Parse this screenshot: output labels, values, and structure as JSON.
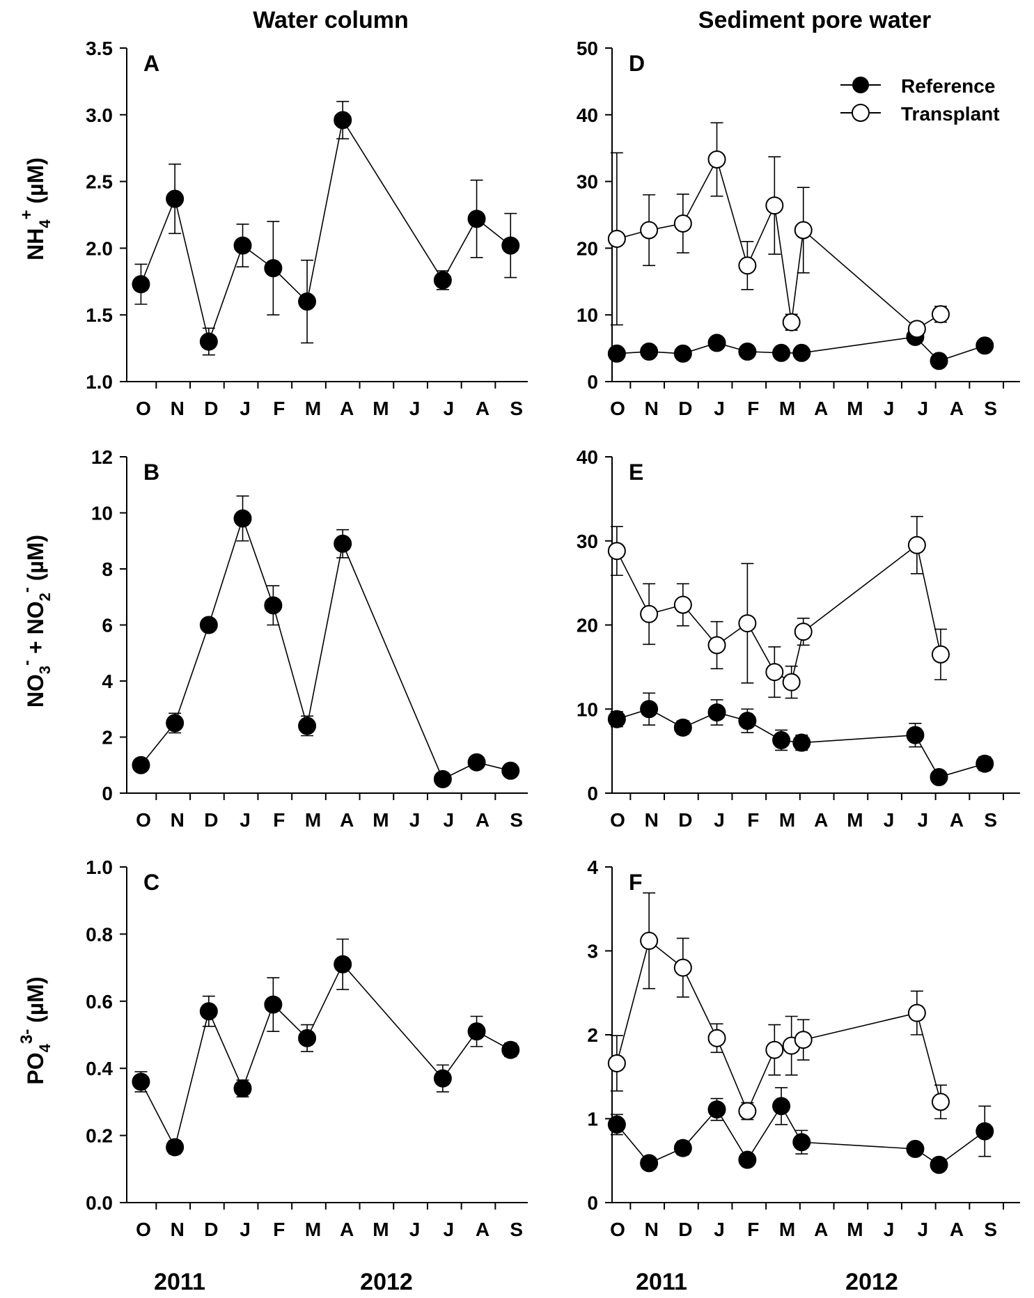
{
  "column_titles": {
    "left": "Water column",
    "right": "Sediment pore water"
  },
  "years": {
    "left": [
      "2011",
      "2012"
    ],
    "right": [
      "2011",
      "2012"
    ]
  },
  "legend": {
    "reference": "Reference",
    "transplant": "Transplant",
    "placement": "top-right of panel D"
  },
  "chart_data": [
    {
      "panel": "A",
      "type": "line",
      "ylabel": "NH4+ (µM)",
      "ylim": [
        1.0,
        3.5
      ],
      "yticks": [
        "1.0",
        "1.5",
        "2.0",
        "2.5",
        "3.0",
        "3.5"
      ],
      "months": [
        "O",
        "N",
        "D",
        "J",
        "F",
        "M",
        "A",
        "M",
        "J",
        "J",
        "A",
        "S"
      ],
      "series": [
        {
          "name": "Reference",
          "marker": "filled",
          "x": [
            0.05,
            1.05,
            2.05,
            3.05,
            3.95,
            4.95,
            6.0,
            8.95,
            9.95,
            10.95
          ],
          "y": [
            1.73,
            2.37,
            1.3,
            2.02,
            1.85,
            1.6,
            2.96,
            1.76,
            2.22,
            2.02
          ],
          "err": [
            0.15,
            0.26,
            0.1,
            0.16,
            0.35,
            0.31,
            0.14,
            0.07,
            0.29,
            0.24
          ]
        }
      ]
    },
    {
      "panel": "D",
      "type": "line",
      "ylabel": "",
      "ylim": [
        0,
        50
      ],
      "yticks": [
        "0",
        "10",
        "20",
        "30",
        "40",
        "50"
      ],
      "months": [
        "O",
        "N",
        "D",
        "J",
        "F",
        "M",
        "A",
        "M",
        "J",
        "J",
        "A",
        "S"
      ],
      "series": [
        {
          "name": "Reference",
          "marker": "filled",
          "x": [
            0.1,
            1.05,
            2.05,
            3.05,
            3.95,
            4.95,
            5.55,
            8.9,
            9.6,
            10.95
          ],
          "y": [
            4.2,
            4.5,
            4.2,
            5.8,
            4.5,
            4.3,
            4.3,
            6.7,
            3.1,
            5.4
          ],
          "err": [
            0.8,
            0.6,
            0.6,
            0.8,
            0.6,
            0.6,
            0.6,
            0.9,
            0.6,
            0.8
          ]
        },
        {
          "name": "Transplant",
          "marker": "open",
          "x": [
            0.1,
            1.05,
            2.05,
            3.05,
            3.95,
            4.75,
            5.25,
            5.6,
            8.95,
            9.65
          ],
          "y": [
            21.4,
            22.7,
            23.7,
            33.3,
            17.4,
            26.4,
            8.9,
            22.7,
            7.9,
            10.1
          ],
          "err": [
            12.9,
            5.3,
            4.4,
            5.5,
            3.6,
            7.3,
            1.2,
            6.4,
            1.0,
            1.2
          ]
        }
      ]
    },
    {
      "panel": "B",
      "type": "line",
      "ylabel": "NO3- + NO2- (µM)",
      "ylim": [
        0,
        12
      ],
      "yticks": [
        "0",
        "2",
        "4",
        "6",
        "8",
        "10",
        "12"
      ],
      "months": [
        "O",
        "N",
        "D",
        "J",
        "F",
        "M",
        "A",
        "M",
        "J",
        "J",
        "A",
        "S"
      ],
      "series": [
        {
          "name": "Reference",
          "marker": "filled",
          "x": [
            0.05,
            1.05,
            2.05,
            3.05,
            3.95,
            4.95,
            6.0,
            8.95,
            9.95,
            10.95
          ],
          "y": [
            1.0,
            2.5,
            6.0,
            9.8,
            6.7,
            2.4,
            8.9,
            0.5,
            1.1,
            0.8
          ],
          "err": [
            0.15,
            0.35,
            0.15,
            0.8,
            0.7,
            0.35,
            0.5,
            0.1,
            0.2,
            0.15
          ]
        }
      ]
    },
    {
      "panel": "E",
      "type": "line",
      "ylabel": "",
      "ylim": [
        0,
        40
      ],
      "yticks": [
        "0",
        "10",
        "20",
        "30",
        "40"
      ],
      "months": [
        "O",
        "N",
        "D",
        "J",
        "F",
        "M",
        "A",
        "M",
        "J",
        "J",
        "A",
        "S"
      ],
      "series": [
        {
          "name": "Reference",
          "marker": "filled",
          "x": [
            0.1,
            1.05,
            2.05,
            3.05,
            3.95,
            4.95,
            5.55,
            8.9,
            9.6,
            10.95
          ],
          "y": [
            8.8,
            10.0,
            7.8,
            9.6,
            8.6,
            6.3,
            6.0,
            6.9,
            1.9,
            3.5
          ],
          "err": [
            0.9,
            1.9,
            0.8,
            1.5,
            1.4,
            1.2,
            0.9,
            1.4,
            0.6,
            0.8
          ]
        },
        {
          "name": "Transplant",
          "marker": "open",
          "x": [
            0.1,
            1.05,
            2.05,
            3.05,
            3.95,
            4.75,
            5.25,
            5.6,
            8.95,
            9.65
          ],
          "y": [
            28.8,
            21.3,
            22.4,
            17.6,
            20.2,
            14.4,
            13.2,
            19.2,
            29.5,
            16.5
          ],
          "err": [
            2.9,
            3.6,
            2.5,
            2.8,
            7.1,
            3.0,
            1.9,
            1.6,
            3.4,
            3.0
          ]
        }
      ]
    },
    {
      "panel": "C",
      "type": "line",
      "ylabel": "PO43- (µM)",
      "ylim": [
        0.0,
        1.0
      ],
      "yticks": [
        "0.0",
        "0.2",
        "0.4",
        "0.6",
        "0.8",
        "1.0"
      ],
      "months": [
        "O",
        "N",
        "D",
        "J",
        "F",
        "M",
        "A",
        "M",
        "J",
        "J",
        "A",
        "S"
      ],
      "series": [
        {
          "name": "Reference",
          "marker": "filled",
          "x": [
            0.05,
            1.05,
            2.05,
            3.05,
            3.95,
            4.95,
            6.0,
            8.95,
            9.95,
            10.95
          ],
          "y": [
            0.36,
            0.165,
            0.57,
            0.34,
            0.59,
            0.49,
            0.71,
            0.37,
            0.51,
            0.455
          ],
          "err": [
            0.03,
            0.02,
            0.045,
            0.025,
            0.08,
            0.04,
            0.075,
            0.04,
            0.045,
            0.02
          ]
        }
      ]
    },
    {
      "panel": "F",
      "type": "line",
      "ylabel": "",
      "ylim": [
        0,
        4
      ],
      "yticks": [
        "0",
        "1",
        "2",
        "3",
        "4"
      ],
      "months": [
        "O",
        "N",
        "D",
        "J",
        "F",
        "M",
        "A",
        "M",
        "J",
        "J",
        "A",
        "S"
      ],
      "series": [
        {
          "name": "Reference",
          "marker": "filled",
          "x": [
            0.1,
            1.05,
            2.05,
            3.05,
            3.95,
            4.95,
            5.55,
            8.9,
            9.6,
            10.95
          ],
          "y": [
            0.93,
            0.47,
            0.65,
            1.11,
            0.51,
            1.15,
            0.72,
            0.64,
            0.45,
            0.85
          ],
          "err": [
            0.12,
            0.06,
            0.08,
            0.13,
            0.05,
            0.22,
            0.14,
            0.07,
            0.05,
            0.3
          ]
        },
        {
          "name": "Transplant",
          "marker": "open",
          "x": [
            0.1,
            1.05,
            2.05,
            3.05,
            3.95,
            4.75,
            5.25,
            5.6,
            8.95,
            9.65
          ],
          "y": [
            1.66,
            3.12,
            2.8,
            1.96,
            1.09,
            1.82,
            1.87,
            1.94,
            2.26,
            1.2
          ],
          "err": [
            0.33,
            0.57,
            0.35,
            0.17,
            0.1,
            0.3,
            0.35,
            0.24,
            0.26,
            0.2
          ]
        }
      ]
    }
  ]
}
